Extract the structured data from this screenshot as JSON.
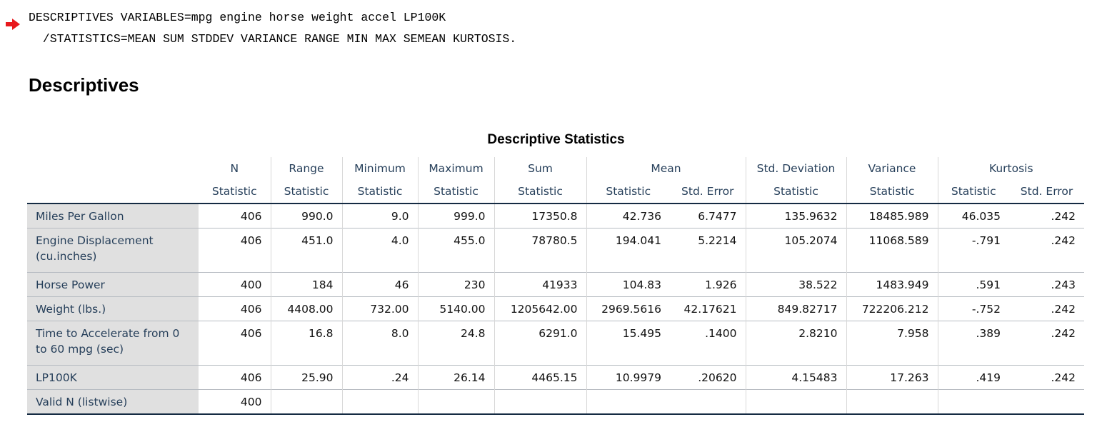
{
  "syntax": {
    "line1": "DESCRIPTIVES VARIABLES=mpg engine horse weight accel LP100K",
    "line2": "  /STATISTICS=MEAN SUM STDDEV VARIANCE RANGE MIN MAX SEMEAN KURTOSIS."
  },
  "heading": "Descriptives",
  "table": {
    "title": "Descriptive Statistics",
    "group_headers": {
      "n": "N",
      "range": "Range",
      "minimum": "Minimum",
      "maximum": "Maximum",
      "sum": "Sum",
      "mean": "Mean",
      "std_deviation": "Std. Deviation",
      "variance": "Variance",
      "kurtosis": "Kurtosis"
    },
    "sub_headers": [
      "Statistic",
      "Statistic",
      "Statistic",
      "Statistic",
      "Statistic",
      "Statistic",
      "Std. Error",
      "Statistic",
      "Statistic",
      "Statistic",
      "Std. Error"
    ],
    "rows": [
      {
        "label": "Miles Per Gallon",
        "values": [
          "406",
          "990.0",
          "9.0",
          "999.0",
          "17350.8",
          "42.736",
          "6.7477",
          "135.9632",
          "18485.989",
          "46.035",
          ".242"
        ]
      },
      {
        "label": "Engine Displacement (cu.inches)",
        "values": [
          "406",
          "451.0",
          "4.0",
          "455.0",
          "78780.5",
          "194.041",
          "5.2214",
          "105.2074",
          "11068.589",
          "-.791",
          ".242"
        ]
      },
      {
        "label": "Horse Power",
        "values": [
          "400",
          "184",
          "46",
          "230",
          "41933",
          "104.83",
          "1.926",
          "38.522",
          "1483.949",
          ".591",
          ".243"
        ]
      },
      {
        "label": "Weight (lbs.)",
        "values": [
          "406",
          "4408.00",
          "732.00",
          "5140.00",
          "1205642.00",
          "2969.5616",
          "42.17621",
          "849.82717",
          "722206.212",
          "-.752",
          ".242"
        ]
      },
      {
        "label": "Time to Accelerate from 0 to 60 mpg (sec)",
        "values": [
          "406",
          "16.8",
          "8.0",
          "24.8",
          "6291.0",
          "15.495",
          ".1400",
          "2.8210",
          "7.958",
          ".389",
          ".242"
        ]
      },
      {
        "label": "LP100K",
        "values": [
          "406",
          "25.90",
          ".24",
          "26.14",
          "4465.15",
          "10.9979",
          ".20620",
          "4.15483",
          "17.263",
          ".419",
          ".242"
        ]
      },
      {
        "label": "Valid N (listwise)",
        "values": [
          "400",
          "",
          "",
          "",
          "",
          "",
          "",
          "",
          "",
          "",
          ""
        ]
      }
    ]
  },
  "colors": {
    "arrow": "#e8191d",
    "header_text": "#263f5a",
    "row_label_bg": "#e0e0e0",
    "rule": "#152b43"
  }
}
